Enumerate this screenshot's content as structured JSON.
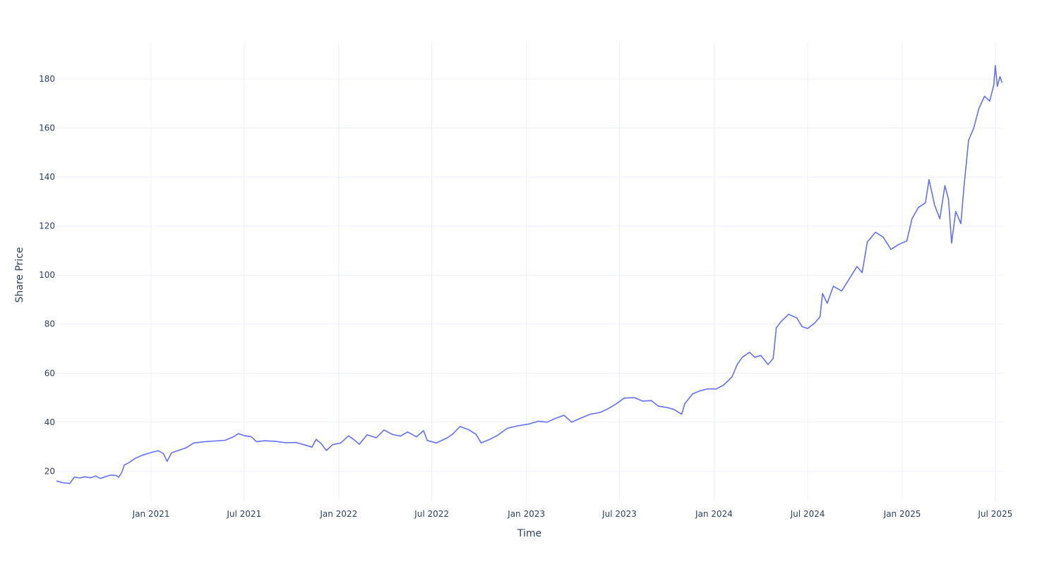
{
  "chart_data": {
    "type": "line",
    "title": "",
    "xlabel": "Time",
    "ylabel": "Share Price",
    "grid": true,
    "legend": "none",
    "xlim": [
      "2020-07-01",
      "2025-07-15"
    ],
    "ylim": [
      8,
      195
    ],
    "x_ticks": [
      {
        "date": "2021-01-01",
        "label": "Jan 2021"
      },
      {
        "date": "2021-07-01",
        "label": "Jul 2021"
      },
      {
        "date": "2022-01-01",
        "label": "Jan 2022"
      },
      {
        "date": "2022-07-01",
        "label": "Jul 2022"
      },
      {
        "date": "2023-01-01",
        "label": "Jan 2023"
      },
      {
        "date": "2023-07-01",
        "label": "Jul 2023"
      },
      {
        "date": "2024-01-01",
        "label": "Jan 2024"
      },
      {
        "date": "2024-07-01",
        "label": "Jul 2024"
      },
      {
        "date": "2025-01-01",
        "label": "Jan 2025"
      },
      {
        "date": "2025-07-01",
        "label": "Jul 2025"
      }
    ],
    "y_ticks": [
      {
        "value": 20,
        "label": "20"
      },
      {
        "value": 40,
        "label": "40"
      },
      {
        "value": 60,
        "label": "60"
      },
      {
        "value": 80,
        "label": "80"
      },
      {
        "value": 100,
        "label": "100"
      },
      {
        "value": 120,
        "label": "120"
      },
      {
        "value": 140,
        "label": "140"
      },
      {
        "value": 160,
        "label": "160"
      },
      {
        "value": 180,
        "label": "180"
      }
    ],
    "series": [
      {
        "color": "#636efa",
        "points": [
          [
            "2020-07-01",
            16.0
          ],
          [
            "2020-07-15",
            15.2
          ],
          [
            "2020-07-27",
            15.0
          ],
          [
            "2020-08-05",
            17.6
          ],
          [
            "2020-08-15",
            17.2
          ],
          [
            "2020-08-25",
            17.7
          ],
          [
            "2020-09-05",
            17.3
          ],
          [
            "2020-09-15",
            18.0
          ],
          [
            "2020-09-25",
            17.0
          ],
          [
            "2020-10-05",
            17.8
          ],
          [
            "2020-10-15",
            18.4
          ],
          [
            "2020-10-25",
            18.2
          ],
          [
            "2020-10-30",
            17.5
          ],
          [
            "2020-11-05",
            19.5
          ],
          [
            "2020-11-10",
            22.5
          ],
          [
            "2020-11-20",
            23.6
          ],
          [
            "2020-12-01",
            25.2
          ],
          [
            "2020-12-15",
            26.5
          ],
          [
            "2021-01-01",
            27.6
          ],
          [
            "2021-01-15",
            28.3
          ],
          [
            "2021-01-25",
            27.2
          ],
          [
            "2021-02-01",
            24.0
          ],
          [
            "2021-02-10",
            27.5
          ],
          [
            "2021-02-25",
            28.6
          ],
          [
            "2021-03-10",
            29.5
          ],
          [
            "2021-03-25",
            31.5
          ],
          [
            "2021-04-15",
            32.0
          ],
          [
            "2021-05-05",
            32.3
          ],
          [
            "2021-05-25",
            32.6
          ],
          [
            "2021-06-10",
            34.0
          ],
          [
            "2021-06-20",
            35.3
          ],
          [
            "2021-07-01",
            34.5
          ],
          [
            "2021-07-15",
            34.0
          ],
          [
            "2021-07-25",
            32.0
          ],
          [
            "2021-08-10",
            32.4
          ],
          [
            "2021-08-30",
            32.2
          ],
          [
            "2021-09-20",
            31.6
          ],
          [
            "2021-10-10",
            31.7
          ],
          [
            "2021-10-30",
            30.5
          ],
          [
            "2021-11-10",
            29.8
          ],
          [
            "2021-11-18",
            33.0
          ],
          [
            "2021-11-28",
            31.2
          ],
          [
            "2021-12-08",
            28.4
          ],
          [
            "2021-12-20",
            30.8
          ],
          [
            "2022-01-05",
            31.5
          ],
          [
            "2022-01-20",
            34.4
          ],
          [
            "2022-02-01",
            32.6
          ],
          [
            "2022-02-10",
            31.0
          ],
          [
            "2022-02-25",
            34.8
          ],
          [
            "2022-03-15",
            33.6
          ],
          [
            "2022-03-30",
            36.8
          ],
          [
            "2022-04-15",
            35.0
          ],
          [
            "2022-05-01",
            34.3
          ],
          [
            "2022-05-15",
            36.0
          ],
          [
            "2022-06-01",
            34.0
          ],
          [
            "2022-06-15",
            36.5
          ],
          [
            "2022-06-22",
            32.5
          ],
          [
            "2022-07-10",
            31.5
          ],
          [
            "2022-07-30",
            33.5
          ],
          [
            "2022-08-10",
            35.0
          ],
          [
            "2022-08-25",
            38.2
          ],
          [
            "2022-09-10",
            37.0
          ],
          [
            "2022-09-25",
            35.0
          ],
          [
            "2022-10-05",
            31.5
          ],
          [
            "2022-10-20",
            32.8
          ],
          [
            "2022-11-05",
            34.5
          ],
          [
            "2022-11-25",
            37.5
          ],
          [
            "2022-12-15",
            38.5
          ],
          [
            "2023-01-05",
            39.2
          ],
          [
            "2023-01-25",
            40.4
          ],
          [
            "2023-02-10",
            40.0
          ],
          [
            "2023-02-25",
            41.4
          ],
          [
            "2023-03-15",
            42.8
          ],
          [
            "2023-03-30",
            40.0
          ],
          [
            "2023-04-15",
            41.5
          ],
          [
            "2023-05-05",
            43.2
          ],
          [
            "2023-05-25",
            44.0
          ],
          [
            "2023-06-10",
            45.6
          ],
          [
            "2023-06-25",
            47.5
          ],
          [
            "2023-07-10",
            49.8
          ],
          [
            "2023-07-30",
            50.0
          ],
          [
            "2023-08-15",
            48.6
          ],
          [
            "2023-09-01",
            48.8
          ],
          [
            "2023-09-15",
            46.5
          ],
          [
            "2023-10-01",
            46.0
          ],
          [
            "2023-10-15",
            45.2
          ],
          [
            "2023-10-30",
            43.2
          ],
          [
            "2023-11-05",
            47.5
          ],
          [
            "2023-11-20",
            51.5
          ],
          [
            "2023-12-05",
            52.8
          ],
          [
            "2023-12-20",
            53.6
          ],
          [
            "2024-01-05",
            53.5
          ],
          [
            "2024-01-20",
            55.2
          ],
          [
            "2024-02-05",
            58.5
          ],
          [
            "2024-02-15",
            63.5
          ],
          [
            "2024-02-25",
            66.5
          ],
          [
            "2024-03-10",
            68.5
          ],
          [
            "2024-03-20",
            66.5
          ],
          [
            "2024-04-01",
            67.2
          ],
          [
            "2024-04-15",
            63.5
          ],
          [
            "2024-04-25",
            66.0
          ],
          [
            "2024-05-01",
            78.5
          ],
          [
            "2024-05-10",
            81.0
          ],
          [
            "2024-05-25",
            84.0
          ],
          [
            "2024-06-10",
            82.5
          ],
          [
            "2024-06-20",
            79.0
          ],
          [
            "2024-07-01",
            78.2
          ],
          [
            "2024-07-15",
            80.5
          ],
          [
            "2024-07-25",
            83.0
          ],
          [
            "2024-07-30",
            92.5
          ],
          [
            "2024-08-08",
            88.5
          ],
          [
            "2024-08-20",
            95.5
          ],
          [
            "2024-09-05",
            93.5
          ],
          [
            "2024-09-20",
            98.5
          ],
          [
            "2024-10-05",
            103.5
          ],
          [
            "2024-10-15",
            101.0
          ],
          [
            "2024-10-25",
            113.5
          ],
          [
            "2024-11-10",
            117.5
          ],
          [
            "2024-11-25",
            115.5
          ],
          [
            "2024-12-10",
            110.5
          ],
          [
            "2024-12-25",
            112.5
          ],
          [
            "2025-01-10",
            114.0
          ],
          [
            "2025-01-20",
            123.0
          ],
          [
            "2025-02-01",
            127.5
          ],
          [
            "2025-02-15",
            129.5
          ],
          [
            "2025-02-22",
            139.0
          ],
          [
            "2025-03-05",
            128.5
          ],
          [
            "2025-03-15",
            123.0
          ],
          [
            "2025-03-25",
            136.5
          ],
          [
            "2025-04-01",
            131.0
          ],
          [
            "2025-04-07",
            113.0
          ],
          [
            "2025-04-15",
            126.0
          ],
          [
            "2025-04-25",
            121.0
          ],
          [
            "2025-05-01",
            136.0
          ],
          [
            "2025-05-10",
            155.0
          ],
          [
            "2025-05-20",
            160.0
          ],
          [
            "2025-05-30",
            168.0
          ],
          [
            "2025-06-10",
            173.0
          ],
          [
            "2025-06-20",
            171.0
          ],
          [
            "2025-06-28",
            177.5
          ],
          [
            "2025-07-01",
            185.5
          ],
          [
            "2025-07-05",
            177.0
          ],
          [
            "2025-07-10",
            181.0
          ],
          [
            "2025-07-14",
            178.5
          ]
        ]
      }
    ]
  }
}
